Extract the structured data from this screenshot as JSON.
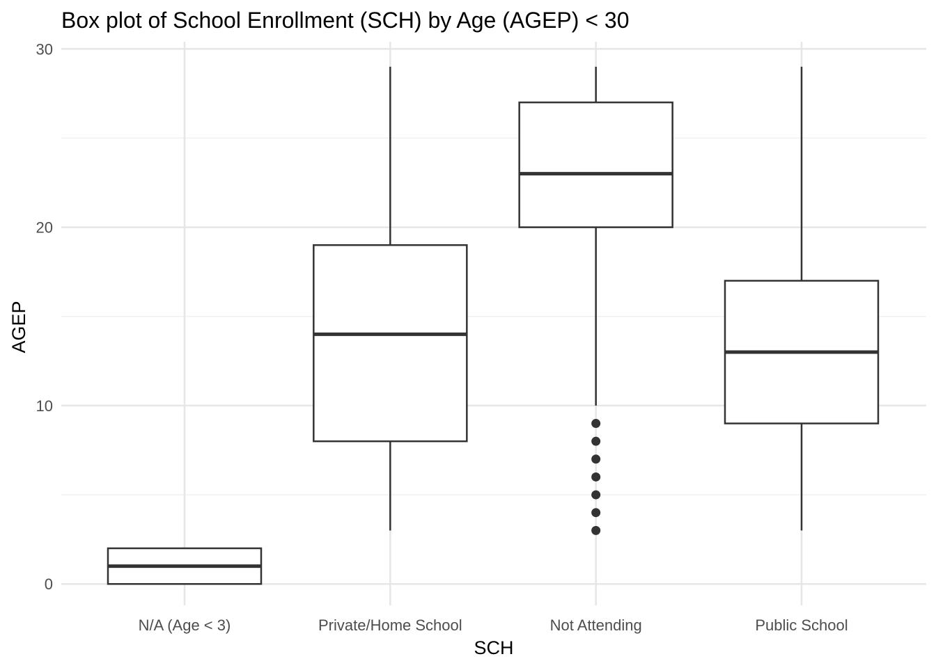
{
  "chart_data": {
    "type": "boxplot",
    "title": "Box plot of School Enrollment (SCH) by Age (AGEP) < 30",
    "xlabel": "SCH",
    "ylabel": "AGEP",
    "categories": [
      "N/A (Age < 3)",
      "Private/Home School",
      "Not Attending",
      "Public School"
    ],
    "ylim": [
      -1.2,
      30.4
    ],
    "yticks": [
      0,
      10,
      20,
      30
    ],
    "yminor": [
      5,
      15,
      25
    ],
    "grid": true,
    "boxes": [
      {
        "category": "N/A (Age < 3)",
        "whisker_low": 0,
        "q1": 0,
        "median": 1,
        "q3": 2,
        "whisker_high": 2,
        "outliers": []
      },
      {
        "category": "Private/Home School",
        "whisker_low": 3,
        "q1": 8,
        "median": 14,
        "q3": 19,
        "whisker_high": 29,
        "outliers": []
      },
      {
        "category": "Not Attending",
        "whisker_low": 10,
        "q1": 20,
        "median": 23,
        "q3": 27,
        "whisker_high": 29,
        "outliers": [
          3,
          4,
          5,
          6,
          7,
          8,
          9
        ]
      },
      {
        "category": "Public School",
        "whisker_low": 3,
        "q1": 9,
        "median": 13,
        "q3": 17,
        "whisker_high": 29,
        "outliers": []
      }
    ],
    "colors": {
      "box_stroke": "#333333",
      "box_fill": "#ffffff",
      "grid_major": "#e6e6e6",
      "grid_minor": "#f0f0f0",
      "tick_text": "#4d4d4d"
    }
  }
}
